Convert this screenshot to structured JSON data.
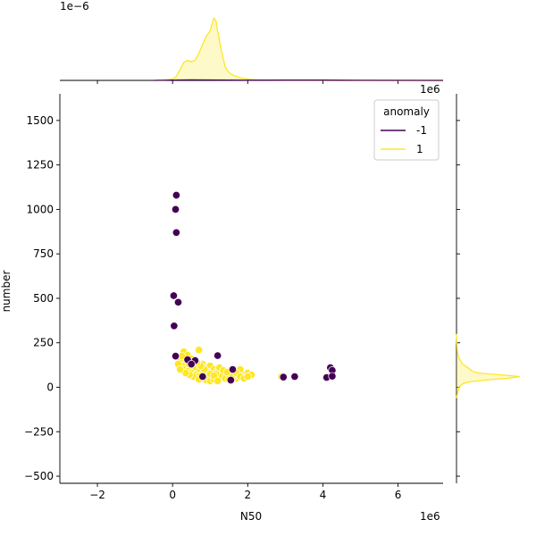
{
  "chart_data": {
    "type": "scatter",
    "xlabel": "N50",
    "ylabel": "number",
    "x_offset_label": "1e6",
    "y_offset_label": "1e6",
    "top_marginal_offset_label": "1e−6",
    "xlim": [
      -3000000,
      7200000
    ],
    "ylim": [
      -540,
      1650
    ],
    "x_ticks": [
      -2000000,
      0,
      2000000,
      4000000,
      6000000
    ],
    "x_tick_labels": [
      "−2",
      "0",
      "2",
      "4",
      "6"
    ],
    "y_ticks": [
      -500,
      -250,
      0,
      250,
      500,
      750,
      1000,
      1250,
      1500
    ],
    "y_tick_labels": [
      "−500",
      "−250",
      "0",
      "250",
      "500",
      "750",
      "1000",
      "1250",
      "1500"
    ],
    "legend": {
      "title": "anomaly",
      "placement": "top-right",
      "entries": [
        {
          "label": "-1",
          "color": "#440154"
        },
        {
          "label": "1",
          "color": "#fde725"
        }
      ]
    },
    "series": [
      {
        "name": "-1",
        "color": "#440154",
        "points": [
          [
            100000,
            1080
          ],
          [
            80000,
            1000
          ],
          [
            100000,
            870
          ],
          [
            30000,
            515
          ],
          [
            150000,
            478
          ],
          [
            40000,
            345
          ],
          [
            80000,
            175
          ],
          [
            400000,
            155
          ],
          [
            600000,
            150
          ],
          [
            1200000,
            178
          ],
          [
            1600000,
            100
          ],
          [
            1550000,
            40
          ],
          [
            2950000,
            57
          ],
          [
            3250000,
            60
          ],
          [
            4100000,
            55
          ],
          [
            4200000,
            110
          ],
          [
            4250000,
            95
          ],
          [
            4250000,
            62
          ],
          [
            800000,
            60
          ],
          [
            500000,
            130
          ]
        ]
      },
      {
        "name": "1",
        "color": "#fde725",
        "points": [
          [
            200000,
            150
          ],
          [
            300000,
            200
          ],
          [
            400000,
            180
          ],
          [
            500000,
            160
          ],
          [
            700000,
            210
          ],
          [
            600000,
            120
          ],
          [
            800000,
            130
          ],
          [
            900000,
            110
          ],
          [
            1000000,
            120
          ],
          [
            1100000,
            100
          ],
          [
            1200000,
            90
          ],
          [
            1300000,
            80
          ],
          [
            1400000,
            70
          ],
          [
            1500000,
            60
          ],
          [
            1700000,
            50
          ],
          [
            1900000,
            70
          ],
          [
            2000000,
            80
          ],
          [
            2100000,
            70
          ],
          [
            1800000,
            100
          ],
          [
            1600000,
            55
          ],
          [
            1050000,
            40
          ],
          [
            950000,
            50
          ],
          [
            850000,
            70
          ],
          [
            750000,
            90
          ],
          [
            650000,
            100
          ],
          [
            550000,
            110
          ],
          [
            450000,
            120
          ],
          [
            350000,
            130
          ],
          [
            250000,
            120
          ],
          [
            300000,
            100
          ],
          [
            400000,
            90
          ],
          [
            500000,
            80
          ],
          [
            600000,
            70
          ],
          [
            700000,
            60
          ],
          [
            800000,
            50
          ],
          [
            900000,
            40
          ],
          [
            1000000,
            35
          ],
          [
            1100000,
            45
          ],
          [
            1200000,
            55
          ],
          [
            1300000,
            60
          ],
          [
            1400000,
            50
          ],
          [
            1500000,
            45
          ],
          [
            1600000,
            70
          ],
          [
            1700000,
            80
          ],
          [
            1800000,
            60
          ],
          [
            1900000,
            50
          ],
          [
            2000000,
            60
          ],
          [
            1150000,
            75
          ],
          [
            1250000,
            110
          ],
          [
            1350000,
            95
          ],
          [
            950000,
            85
          ],
          [
            850000,
            100
          ],
          [
            750000,
            120
          ],
          [
            650000,
            140
          ],
          [
            550000,
            60
          ],
          [
            450000,
            70
          ],
          [
            350000,
            80
          ],
          [
            1000000,
            75
          ],
          [
            1100000,
            65
          ],
          [
            1200000,
            35
          ],
          [
            2900000,
            60
          ],
          [
            700000,
            45
          ],
          [
            1450000,
            85
          ],
          [
            1550000,
            35
          ],
          [
            250000,
            175
          ],
          [
            150000,
            130
          ],
          [
            200000,
            100
          ]
        ]
      }
    ],
    "marginal_x": {
      "series": [
        {
          "name": "1",
          "color": "#fde725",
          "x": [
            -500000,
            -200000,
            0,
            100000,
            200000,
            300000,
            400000,
            500000,
            600000,
            700000,
            800000,
            900000,
            1000000,
            1050000,
            1100000,
            1150000,
            1200000,
            1300000,
            1400000,
            1500000,
            1600000,
            1800000,
            2000000,
            2200000,
            2500000,
            3000000,
            3500000,
            4500000,
            5500000,
            7200000
          ],
          "density": [
            0,
            0.005,
            0.02,
            0.06,
            0.16,
            0.27,
            0.3,
            0.28,
            0.3,
            0.4,
            0.54,
            0.66,
            0.74,
            0.84,
            0.93,
            0.9,
            0.74,
            0.44,
            0.2,
            0.12,
            0.08,
            0.04,
            0.02,
            0.01,
            0.005,
            0.002,
            0.001,
            0,
            0,
            0
          ]
        },
        {
          "name": "-1",
          "color": "#440154",
          "x": [
            -500000,
            0,
            500000,
            1000000,
            1500000,
            2000000,
            3000000,
            4000000,
            5000000,
            7200000
          ],
          "density": [
            0,
            0.005,
            0.008,
            0.006,
            0.004,
            0.003,
            0.004,
            0.004,
            0.001,
            0
          ]
        }
      ]
    },
    "marginal_y": {
      "series": [
        {
          "name": "1",
          "color": "#fde725",
          "y": [
            -60,
            0,
            20,
            30,
            40,
            50,
            60,
            70,
            80,
            90,
            100,
            110,
            120,
            130,
            150,
            170,
            200,
            250,
            300
          ],
          "density": [
            0,
            0.04,
            0.1,
            0.2,
            0.45,
            0.8,
            1.0,
            0.7,
            0.35,
            0.25,
            0.22,
            0.18,
            0.14,
            0.1,
            0.06,
            0.03,
            0.015,
            0.005,
            0
          ]
        }
      ]
    }
  }
}
